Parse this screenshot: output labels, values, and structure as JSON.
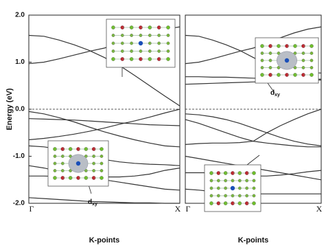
{
  "chart_data": [
    {
      "type": "line",
      "ylabel": "Energy (eV)",
      "xlabel": "K-points",
      "xlim": [
        0,
        1
      ],
      "ylim": [
        -2,
        2
      ],
      "xticks": [
        {
          "value": 0,
          "label": "Γ"
        },
        {
          "value": 1,
          "label": "X"
        }
      ],
      "yticks": [
        {
          "value": 2,
          "label": "2.0"
        },
        {
          "value": 1,
          "label": "1.0"
        },
        {
          "value": 0,
          "label": "0.0"
        },
        {
          "value": -1,
          "label": "-1.0"
        },
        {
          "value": -2,
          "label": "-2.0"
        }
      ],
      "fermi_level": 0,
      "color": "#333333",
      "x": [
        0,
        0.1,
        0.2,
        0.3,
        0.4,
        0.5,
        0.6,
        0.7,
        0.8,
        0.9,
        1
      ],
      "series": [
        {
          "values": [
            1.57,
            1.55,
            1.47,
            1.37,
            1.25,
            1.1,
            0.93,
            0.72,
            0.5,
            0.28,
            0.07
          ]
        },
        {
          "values": [
            0.97,
            1.0,
            1.07,
            1.15,
            1.23,
            1.3,
            1.4,
            1.52,
            1.62,
            1.7,
            1.75
          ]
        },
        {
          "values": [
            -0.05,
            -0.1,
            -0.18,
            -0.27,
            -0.38,
            -0.48,
            -0.57,
            -0.65,
            -0.72,
            -0.78,
            -0.8
          ]
        },
        {
          "values": [
            -0.2,
            -0.21,
            -0.22,
            -0.23,
            -0.25,
            -0.27,
            -0.29,
            -0.31,
            -0.33,
            -0.34,
            -0.35
          ]
        },
        {
          "values": [
            -0.65,
            -0.62,
            -0.58,
            -0.53,
            -0.47,
            -0.4,
            -0.32,
            -0.25,
            -0.17,
            -0.08,
            0.0
          ]
        },
        {
          "values": [
            -0.78,
            -0.8,
            -0.85,
            -0.92,
            -1.0,
            -1.07,
            -1.12,
            -1.15,
            -1.17,
            -1.18,
            -1.2
          ]
        },
        {
          "values": [
            -1.2,
            -1.25,
            -1.32,
            -1.38,
            -1.42,
            -1.44,
            -1.44,
            -1.42,
            -1.38,
            -1.3,
            -1.25
          ]
        },
        {
          "values": [
            -1.42,
            -1.42,
            -1.43,
            -1.45,
            -1.47,
            -1.5,
            -1.55,
            -1.6,
            -1.65,
            -1.7,
            -1.72
          ]
        },
        {
          "values": [
            -1.88,
            -1.9,
            -1.92,
            -1.94,
            -1.96,
            -1.97,
            -1.98,
            -1.99,
            -1.99,
            -2.0,
            -2.0
          ]
        }
      ],
      "annotations": [
        {
          "label": "d",
          "sub": "xy"
        }
      ]
    },
    {
      "type": "line",
      "xlabel": "K-points",
      "xlim": [
        0,
        1
      ],
      "ylim": [
        -2,
        2
      ],
      "xticks": [
        {
          "value": 0,
          "label": "Γ"
        },
        {
          "value": 1,
          "label": "X"
        }
      ],
      "fermi_level": 0,
      "color": "#333333",
      "x": [
        0,
        0.1,
        0.2,
        0.3,
        0.4,
        0.5,
        0.6,
        0.7,
        0.8,
        0.9,
        1
      ],
      "series": [
        {
          "values": [
            1.57,
            1.55,
            1.47,
            1.37,
            1.25,
            1.1,
            0.95,
            0.85,
            0.8,
            0.78,
            0.77
          ]
        },
        {
          "values": [
            0.97,
            1.0,
            1.07,
            1.15,
            1.23,
            1.3,
            1.4,
            1.52,
            1.62,
            1.7,
            1.75
          ]
        },
        {
          "values": [
            0.69,
            0.69,
            0.68,
            0.68,
            0.67,
            0.66,
            0.65,
            0.64,
            0.64,
            0.64,
            0.64
          ]
        },
        {
          "values": [
            0.53,
            0.54,
            0.55,
            0.56,
            0.57,
            0.58,
            0.59,
            0.6,
            0.61,
            0.62,
            0.62
          ]
        },
        {
          "values": [
            -0.1,
            -0.12,
            -0.16,
            -0.22,
            -0.3,
            -0.4,
            -0.5,
            -0.6,
            -0.68,
            -0.74,
            -0.78
          ]
        },
        {
          "values": [
            -0.22,
            -0.3,
            -0.4,
            -0.5,
            -0.6,
            -0.68,
            -0.72,
            -0.75,
            -0.78,
            -0.8,
            -0.8
          ]
        },
        {
          "values": [
            -0.75,
            -0.73,
            -0.72,
            -0.72,
            -0.71,
            -0.68,
            -0.5,
            -0.35,
            -0.22,
            -0.1,
            0.0
          ]
        },
        {
          "values": [
            -1.0,
            -1.05,
            -1.1,
            -1.15,
            -1.2,
            -1.25,
            -1.3,
            -1.35,
            -1.4,
            -1.45,
            -1.5
          ]
        },
        {
          "values": [
            -1.35,
            -1.35,
            -1.35,
            -1.37,
            -1.4,
            -1.42,
            -1.42,
            -1.4,
            -1.37,
            -1.33,
            -1.3
          ]
        },
        {
          "values": [
            -1.7,
            -1.72,
            -1.75,
            -1.78,
            -1.8,
            -1.8,
            -1.8,
            -1.8,
            -1.8,
            -1.8,
            -1.8
          ]
        }
      ],
      "annotations": [
        {
          "label": "d",
          "sub": "xy"
        }
      ]
    }
  ]
}
